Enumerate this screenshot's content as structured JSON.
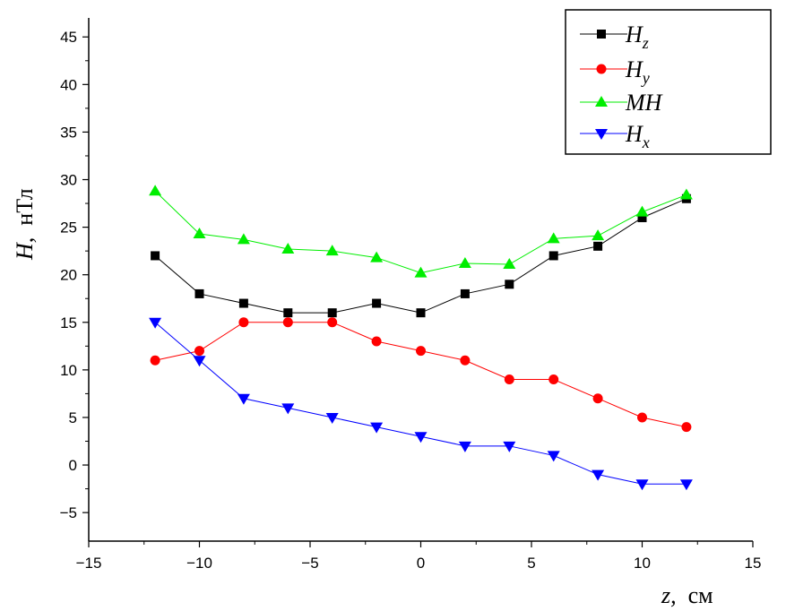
{
  "chart_data": {
    "type": "line",
    "xlabel": {
      "var": "z,",
      "unit": "см"
    },
    "ylabel": {
      "var": "H,",
      "unit": "нТл"
    },
    "xlim": [
      -15,
      15
    ],
    "ylim": [
      -8,
      47
    ],
    "xticks": [
      -15,
      -10,
      -5,
      0,
      5,
      10,
      15
    ],
    "yticks": [
      -5,
      0,
      5,
      10,
      15,
      20,
      25,
      30,
      35,
      40,
      45
    ],
    "grid": false,
    "legend_position": "top-right",
    "x": [
      -12,
      -10,
      -8,
      -6,
      -4,
      -2,
      0,
      2,
      4,
      6,
      8,
      10,
      12
    ],
    "series": [
      {
        "name": "H",
        "sub": "z",
        "marker": "square",
        "color": "#000000",
        "values": [
          22,
          18,
          17,
          16,
          16,
          17,
          16,
          18,
          19,
          22,
          23,
          26,
          28
        ]
      },
      {
        "name": "H",
        "sub": "y",
        "marker": "circle",
        "color": "#ff0000",
        "values": [
          11,
          12,
          15,
          15,
          15,
          13,
          12,
          11,
          9,
          9,
          7,
          5,
          4
        ]
      },
      {
        "name": "MH",
        "sub": "",
        "marker": "triangle-up",
        "color": "#00ee00",
        "values": [
          28.8,
          24.3,
          23.7,
          22.7,
          22.5,
          21.8,
          20.2,
          21.2,
          21.1,
          23.8,
          24.1,
          26.6,
          28.4
        ]
      },
      {
        "name": "H",
        "sub": "x",
        "marker": "triangle-down",
        "color": "#0000ff",
        "values": [
          15,
          11,
          7,
          6,
          5,
          4,
          3,
          2,
          2,
          1,
          -1,
          -2,
          -2
        ]
      }
    ]
  }
}
